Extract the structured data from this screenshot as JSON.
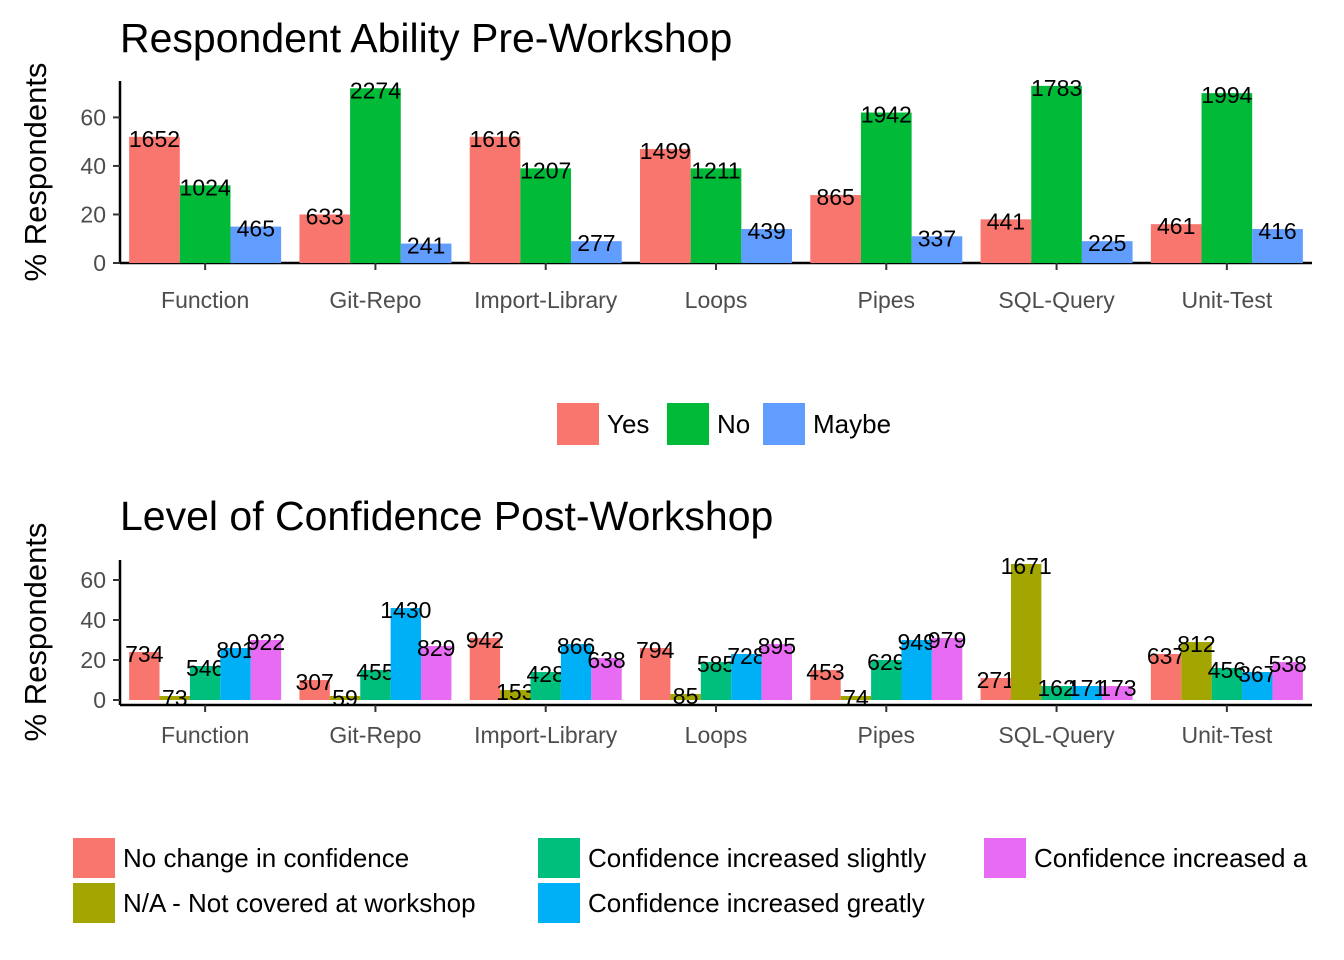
{
  "chart_data": [
    {
      "type": "bar",
      "title": "Respondent Ability Pre-Workshop",
      "ylabel": "% Respondents",
      "xlabel": "",
      "ylim": [
        0,
        75
      ],
      "yticks": [
        0,
        20,
        40,
        60
      ],
      "categories": [
        "Function",
        "Git-Repo",
        "Import-Library",
        "Loops",
        "Pipes",
        "SQL-Query",
        "Unit-Test"
      ],
      "legend_position": "bottom",
      "grid": false,
      "series": [
        {
          "name": "Yes",
          "color": "#F8766D",
          "values": [
            52,
            20,
            52,
            47,
            28,
            18,
            16
          ],
          "labels": [
            "1652",
            "633",
            "1616",
            "1499",
            "865",
            "441",
            "461"
          ]
        },
        {
          "name": "No",
          "color": "#00BA38",
          "values": [
            32,
            72,
            39,
            39,
            62,
            73,
            70
          ],
          "labels": [
            "1024",
            "2274",
            "1207",
            "1211",
            "1942",
            "1783",
            "1994"
          ]
        },
        {
          "name": "Maybe",
          "color": "#619CFF",
          "values": [
            15,
            8,
            9,
            14,
            11,
            9,
            14
          ],
          "labels": [
            "465",
            "241",
            "277",
            "439",
            "337",
            "225",
            "416"
          ]
        }
      ]
    },
    {
      "type": "bar",
      "title": "Level of Confidence Post-Workshop",
      "ylabel": "% Respondents",
      "xlabel": "",
      "ylim": [
        0,
        70
      ],
      "yticks": [
        0,
        20,
        40,
        60
      ],
      "categories": [
        "Function",
        "Git-Repo",
        "Import-Library",
        "Loops",
        "Pipes",
        "SQL-Query",
        "Unit-Test"
      ],
      "legend_position": "bottom",
      "grid": false,
      "series": [
        {
          "name": "No change in confidence",
          "color": "#F8766D",
          "values": [
            24,
            10,
            31,
            26,
            15,
            11,
            23
          ],
          "labels": [
            "734",
            "307",
            "942",
            "794",
            "453",
            "271",
            "637"
          ]
        },
        {
          "name": "N/A - Not covered at workshop",
          "color": "#A3A500",
          "values": [
            2,
            2,
            5,
            3,
            2,
            68,
            29
          ],
          "labels": [
            "73",
            "59",
            "153",
            "85",
            "74",
            "1671",
            "812"
          ]
        },
        {
          "name": "Confidence increased slightly",
          "color": "#00BF7D",
          "values": [
            17,
            15,
            14,
            19,
            20,
            7,
            16
          ],
          "labels": [
            "546",
            "455",
            "428",
            "585",
            "629",
            "162",
            "456"
          ]
        },
        {
          "name": "Confidence increased greatly",
          "color": "#00B0F6",
          "values": [
            26,
            46,
            28,
            23,
            30,
            7,
            14
          ],
          "labels": [
            "801",
            "1430",
            "866",
            "728",
            "949",
            "171",
            "367"
          ]
        },
        {
          "name": "Confidence increased a",
          "color": "#E76BF3",
          "values": [
            30,
            27,
            21,
            28,
            31,
            7,
            19
          ],
          "labels": [
            "922",
            "829",
            "638",
            "895",
            "979",
            "173",
            "538"
          ]
        }
      ]
    }
  ]
}
